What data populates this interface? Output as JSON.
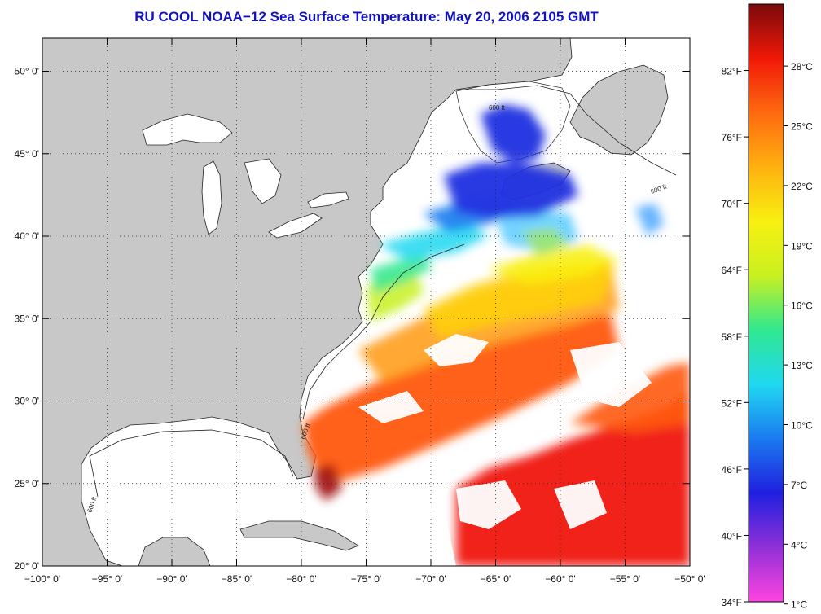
{
  "title": "RU COOL  NOAA−12  Sea Surface Temperature:  May 20, 2006 2105 GMT",
  "map": {
    "lon_range": [
      -100,
      -50
    ],
    "lat_range": [
      20,
      52
    ],
    "lon_ticks": [
      {
        "value": -100,
        "label": "−100° 0'"
      },
      {
        "value": -95,
        "label": "−95° 0'"
      },
      {
        "value": -90,
        "label": "−90° 0'"
      },
      {
        "value": -85,
        "label": "−85° 0'"
      },
      {
        "value": -80,
        "label": "−80° 0'"
      },
      {
        "value": -75,
        "label": "−75° 0'"
      },
      {
        "value": -70,
        "label": "−70° 0'"
      },
      {
        "value": -65,
        "label": "−65° 0'"
      },
      {
        "value": -60,
        "label": "−60° 0'"
      },
      {
        "value": -55,
        "label": "−55° 0'"
      },
      {
        "value": -50,
        "label": "−50° 0'"
      }
    ],
    "lat_ticks": [
      {
        "value": 20,
        "label": "20° 0'"
      },
      {
        "value": 25,
        "label": "25° 0'"
      },
      {
        "value": 30,
        "label": "30° 0'"
      },
      {
        "value": 35,
        "label": "35° 0'"
      },
      {
        "value": 40,
        "label": "40° 0'"
      },
      {
        "value": 45,
        "label": "45° 0'"
      },
      {
        "value": 50,
        "label": "50° 0'"
      }
    ],
    "grid": "dotted",
    "contour_label": "600 ft",
    "land_color": "#c8c8c8",
    "cloud_color": "#ffffff"
  },
  "colorbar": {
    "f_range": [
      34,
      88
    ],
    "f_labels": [
      {
        "value": 82,
        "label": "82°F"
      },
      {
        "value": 76,
        "label": "76°F"
      },
      {
        "value": 70,
        "label": "70°F"
      },
      {
        "value": 64,
        "label": "64°F"
      },
      {
        "value": 58,
        "label": "58°F"
      },
      {
        "value": 52,
        "label": "52°F"
      },
      {
        "value": 46,
        "label": "46°F"
      },
      {
        "value": 40,
        "label": "40°F"
      },
      {
        "value": 34,
        "label": "34°F"
      }
    ],
    "c_labels": [
      {
        "value": 28,
        "label": "28°C"
      },
      {
        "value": 25,
        "label": "25°C"
      },
      {
        "value": 22,
        "label": "22°C"
      },
      {
        "value": 19,
        "label": "19°C"
      },
      {
        "value": 16,
        "label": "16°C"
      },
      {
        "value": 13,
        "label": "13°C"
      },
      {
        "value": 10,
        "label": "10°C"
      },
      {
        "value": 7,
        "label": "7°C"
      },
      {
        "value": 4,
        "label": "4°C"
      },
      {
        "value": 1,
        "label": "1°C"
      }
    ],
    "stops": [
      "#ff44e0",
      "#9030d8",
      "#2020e0",
      "#1a7af0",
      "#20d8f0",
      "#30e890",
      "#c8f020",
      "#f8f010",
      "#ffb010",
      "#ff6a10",
      "#f01808",
      "#7a0a0a"
    ]
  }
}
